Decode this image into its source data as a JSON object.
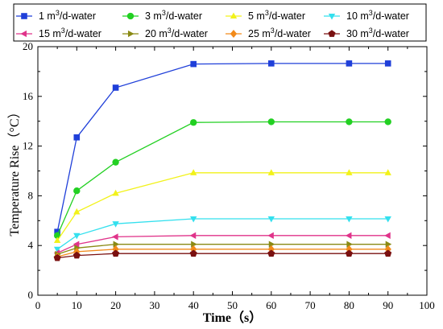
{
  "chart_data": {
    "type": "line",
    "xlabel": "Time（s）",
    "ylabel": "Temperature Rise（°C）",
    "xlim": [
      0,
      100
    ],
    "ylim": [
      0,
      20
    ],
    "xticks": [
      "0",
      "10",
      "20",
      "30",
      "40",
      "50",
      "60",
      "70",
      "80",
      "90",
      "100"
    ],
    "yticks": [
      "0",
      "4",
      "8",
      "12",
      "16",
      "20"
    ],
    "x": [
      5,
      10,
      20,
      40,
      60,
      80,
      90
    ],
    "legend_position": "top",
    "grid": false,
    "series": [
      {
        "name": "1 m³/d-water",
        "color": "#1f3fd9",
        "marker": "square",
        "values": [
          5.1,
          12.7,
          16.7,
          18.6,
          18.65,
          18.65,
          18.65
        ]
      },
      {
        "name": "3 m³/d-water",
        "color": "#22d022",
        "marker": "circle",
        "values": [
          4.8,
          8.4,
          10.7,
          13.9,
          13.95,
          13.95,
          13.95
        ]
      },
      {
        "name": "5 m³/d-water",
        "color": "#f2f21a",
        "marker": "triangle-up",
        "values": [
          4.4,
          6.7,
          8.2,
          9.85,
          9.85,
          9.85,
          9.85
        ]
      },
      {
        "name": "10 m³/d-water",
        "color": "#33e0ee",
        "marker": "triangle-down",
        "values": [
          3.7,
          4.8,
          5.75,
          6.15,
          6.15,
          6.15,
          6.15
        ]
      },
      {
        "name": "15 m³/d-water",
        "color": "#e0338a",
        "marker": "triangle-left",
        "values": [
          3.4,
          4.1,
          4.7,
          4.8,
          4.8,
          4.8,
          4.8
        ]
      },
      {
        "name": "20 m³/d-water",
        "color": "#8a8a14",
        "marker": "triangle-right",
        "values": [
          3.3,
          3.8,
          4.1,
          4.1,
          4.1,
          4.1,
          4.1
        ]
      },
      {
        "name": "25 m³/d-water",
        "color": "#f28a1a",
        "marker": "diamond",
        "values": [
          3.1,
          3.5,
          3.7,
          3.7,
          3.7,
          3.7,
          3.7
        ]
      },
      {
        "name": "30 m³/d-water",
        "color": "#7a1010",
        "marker": "pentagon",
        "values": [
          3.0,
          3.2,
          3.35,
          3.35,
          3.35,
          3.35,
          3.35
        ]
      }
    ]
  }
}
